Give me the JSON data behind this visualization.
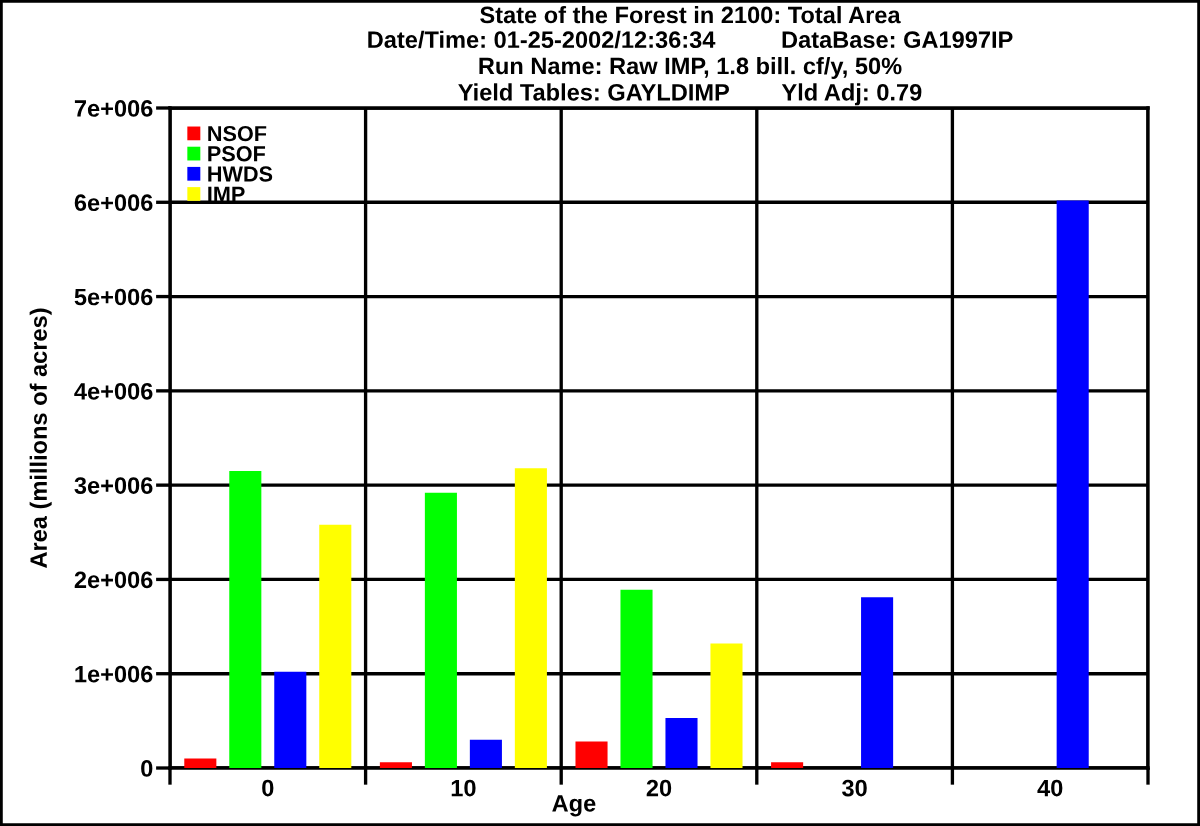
{
  "chart_data": {
    "type": "bar",
    "title": "State of the Forest in 2100: Total Area",
    "subtitle": "Date/Time: 01-25-2002/12:36:34          DataBase: GA1997IP\nRun Name: Raw IMP, 1.8 bill. cf/y, 50%\nYield Tables: GAYLDIMP        Yld Adj: 0.79",
    "xlabel": "Age",
    "ylabel": "Area (millions of acres)",
    "categories": [
      "0",
      "10",
      "20",
      "30",
      "40"
    ],
    "series": [
      {
        "name": "NSOF",
        "color": "#ff0000",
        "values": [
          100000,
          60000,
          280000,
          60000,
          null
        ]
      },
      {
        "name": "PSOF",
        "color": "#00ff00",
        "values": [
          3150000,
          2920000,
          1890000,
          null,
          null
        ]
      },
      {
        "name": "HWDS",
        "color": "#0000ff",
        "values": [
          1020000,
          300000,
          530000,
          1810000,
          6020000
        ]
      },
      {
        "name": "IMP",
        "color": "#ffff00",
        "values": [
          2580000,
          3180000,
          1320000,
          null,
          null
        ]
      }
    ],
    "ylim": [
      0,
      7000000
    ],
    "yticks": [
      0,
      {
        "value": 1000000,
        "label": "1e+006"
      },
      {
        "value": 2000000,
        "label": "2e+006"
      },
      {
        "value": 3000000,
        "label": "3e+006"
      },
      {
        "value": 4000000,
        "label": "4e+006"
      },
      {
        "value": 5000000,
        "label": "5e+006"
      },
      {
        "value": 6000000,
        "label": "6e+006"
      },
      {
        "value": 7000000,
        "label": "7e+006"
      }
    ],
    "grid": true,
    "legend": "top left"
  }
}
